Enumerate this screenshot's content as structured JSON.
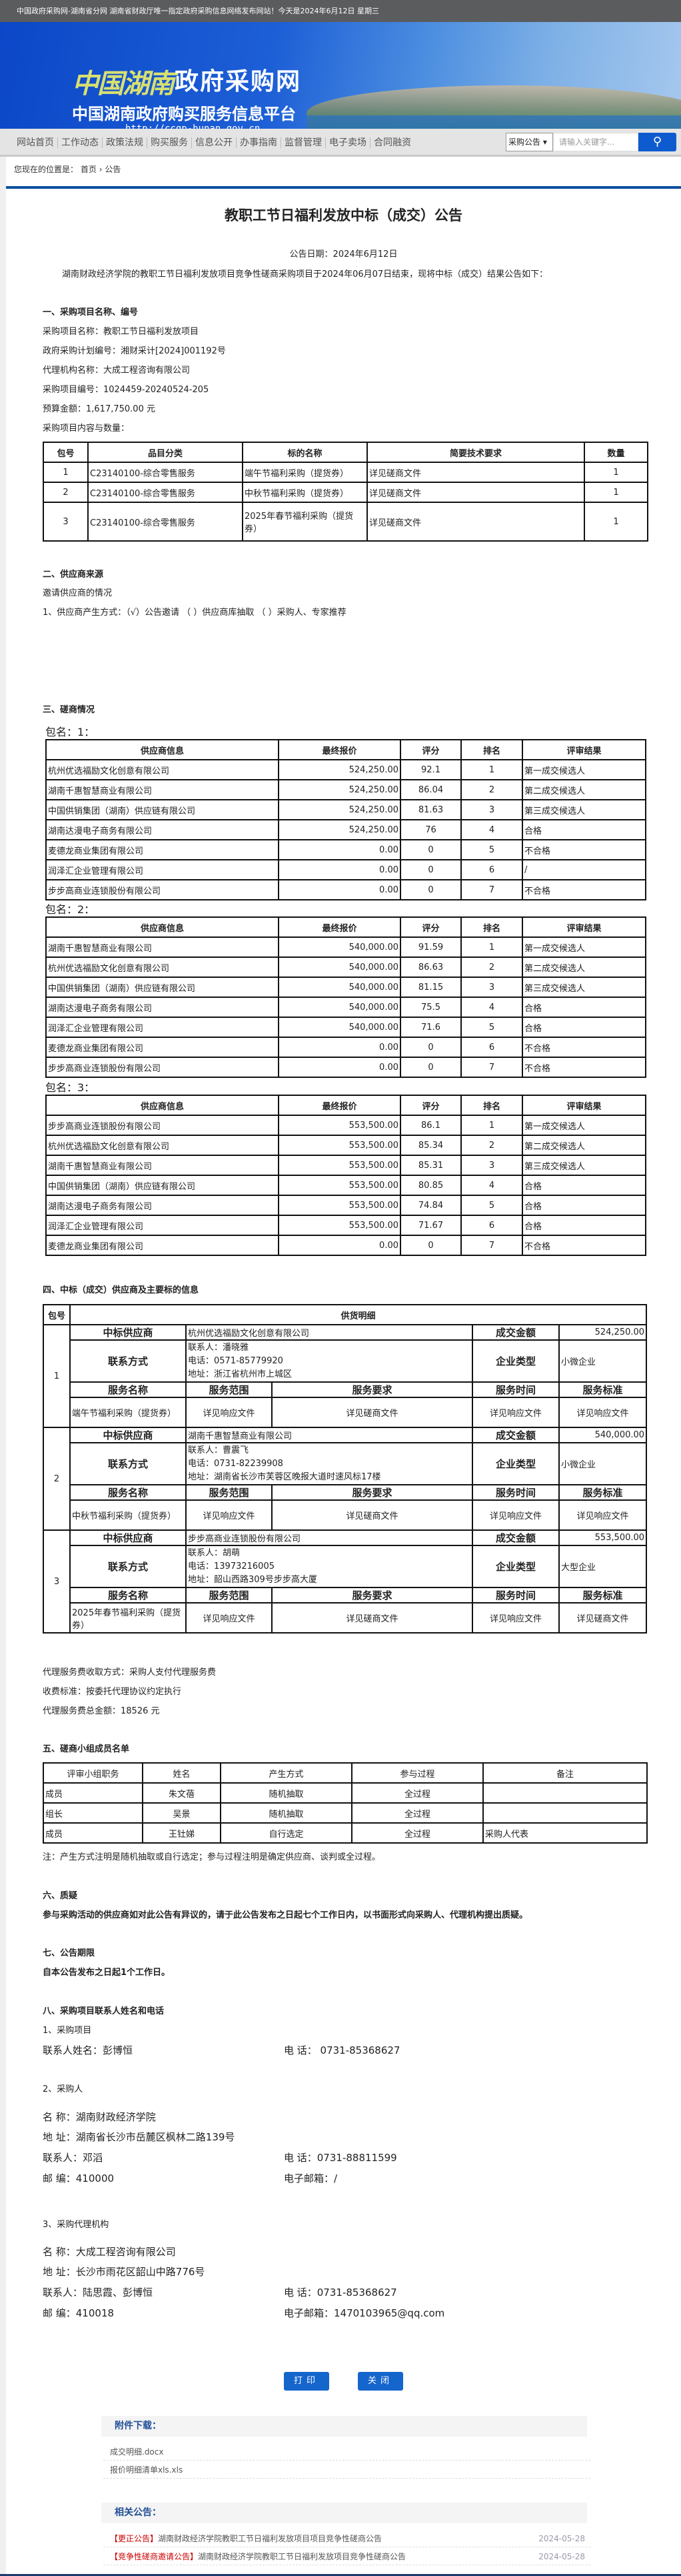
{
  "topbar": {
    "text": "中国政府采购网-湖南省分网 湖南省财政厅唯一指定政府采购信息网络发布网站！今天是2024年6月12日 星期三"
  },
  "banner": {
    "logo_calligraphy": "中国湖南",
    "logo_main": "政府采购网",
    "subtitle": "中国湖南政府购买服务信息平台",
    "url": "http://ccgp-hunan.gov.cn"
  },
  "nav": {
    "items": [
      "网站首页",
      "工作动态",
      "政策法规",
      "购买服务",
      "信息公开",
      "办事指南",
      "监督管理",
      "电子卖场",
      "合同融资"
    ],
    "search": {
      "select": "采购公告",
      "placeholder": "请输入关键字...",
      "icon": "search-icon"
    }
  },
  "breadcrumb": {
    "prefix": "您现在的位置是：",
    "home": "首页",
    "sep": "›",
    "current": "公告"
  },
  "notice": {
    "title": "教职工节日福利发放中标（成交）公告",
    "date": "公告日期：2024年6月12日",
    "intro": "湖南财政经济学院的教职工节日福利发放项目竞争性磋商采购项目于2024年06月07日结束，现将中标（成交）结果公告如下：",
    "s1": {
      "heading": "一、采购项目名称、编号",
      "lines": [
        "采购项目名称：教职工节日福利发放项目",
        "政府采购计划编号：湘财采计[2024]001192号",
        "代理机构名称：大成工程咨询有限公司",
        "采购项目编号：1024459-20240524-205",
        "预算金额：1,617,750.00 元",
        "采购项目内容与数量："
      ],
      "table": {
        "headers": [
          "包号",
          "品目分类",
          "标的名称",
          "简要技术要求",
          "数量"
        ],
        "rows": [
          [
            "1",
            "C23140100-综合零售服务",
            "端午节福利采购（提货券）",
            "详见磋商文件",
            "1"
          ],
          [
            "2",
            "C23140100-综合零售服务",
            "中秋节福利采购（提货券）",
            "详见磋商文件",
            "1"
          ],
          [
            "3",
            "C23140100-综合零售服务",
            "2025年春节福利采购（提货券）",
            "详见磋商文件",
            "1"
          ]
        ]
      }
    },
    "s2": {
      "heading": "二、供应商来源",
      "lines": [
        "邀请供应商的情况",
        "1、供应商产生方式：（√）公告邀请 （ ）供应商库抽取 （ ）采购人、专家推荐"
      ]
    },
    "s3": {
      "heading": "三、磋商情况",
      "headers": [
        "供应商信息",
        "最终报价",
        "评分",
        "排名",
        "评审结果"
      ],
      "packages": [
        {
          "label": "包名：1：",
          "rows": [
            [
              "杭州优选福励文化创意有限公司",
              "524,250.00",
              "92.1",
              "1",
              "第一成交候选人"
            ],
            [
              "湖南千惠智慧商业有限公司",
              "524,250.00",
              "86.04",
              "2",
              "第二成交候选人"
            ],
            [
              "中国供销集团（湖南）供应链有限公司",
              "524,250.00",
              "81.63",
              "3",
              "第三成交候选人"
            ],
            [
              "湖南达漫电子商务有限公司",
              "524,250.00",
              "76",
              "4",
              "合格"
            ],
            [
              "麦德龙商业集团有限公司",
              "0.00",
              "0",
              "5",
              "不合格"
            ],
            [
              "润泽汇企业管理有限公司",
              "0.00",
              "0",
              "6",
              "/"
            ],
            [
              "步步高商业连锁股份有限公司",
              "0.00",
              "0",
              "7",
              "不合格"
            ]
          ]
        },
        {
          "label": "包名：2：",
          "rows": [
            [
              "湖南千惠智慧商业有限公司",
              "540,000.00",
              "91.59",
              "1",
              "第一成交候选人"
            ],
            [
              "杭州优选福励文化创意有限公司",
              "540,000.00",
              "86.63",
              "2",
              "第二成交候选人"
            ],
            [
              "中国供销集团（湖南）供应链有限公司",
              "540,000.00",
              "81.15",
              "3",
              "第三成交候选人"
            ],
            [
              "湖南达漫电子商务有限公司",
              "540,000.00",
              "75.5",
              "4",
              "合格"
            ],
            [
              "润泽汇企业管理有限公司",
              "540,000.00",
              "71.6",
              "5",
              "合格"
            ],
            [
              "麦德龙商业集团有限公司",
              "0.00",
              "0",
              "6",
              "不合格"
            ],
            [
              "步步高商业连锁股份有限公司",
              "0.00",
              "0",
              "7",
              "不合格"
            ]
          ]
        },
        {
          "label": "包名：3：",
          "rows": [
            [
              "步步高商业连锁股份有限公司",
              "553,500.00",
              "86.1",
              "1",
              "第一成交候选人"
            ],
            [
              "杭州优选福励文化创意有限公司",
              "553,500.00",
              "85.34",
              "2",
              "第二成交候选人"
            ],
            [
              "湖南千惠智慧商业有限公司",
              "553,500.00",
              "85.31",
              "3",
              "第三成交候选人"
            ],
            [
              "中国供销集团（湖南）供应链有限公司",
              "553,500.00",
              "80.85",
              "4",
              "合格"
            ],
            [
              "湖南达漫电子商务有限公司",
              "553,500.00",
              "74.84",
              "5",
              "合格"
            ],
            [
              "润泽汇企业管理有限公司",
              "553,500.00",
              "71.67",
              "6",
              "合格"
            ],
            [
              "麦德龙商业集团有限公司",
              "0.00",
              "0",
              "7",
              "不合格"
            ]
          ]
        }
      ]
    },
    "s4": {
      "heading": "四、中标（成交）供应商及主要标的信息",
      "col_pkg": "包号",
      "col_detail": "供货明细",
      "labels": {
        "supplier": "中标供应商",
        "amount": "成交金额",
        "contact": "联系方式",
        "type": "企业类型",
        "svc_name": "服务名称",
        "svc_scope": "服务范围",
        "svc_req": "服务要求",
        "svc_time": "服务时间",
        "svc_std": "服务标准"
      },
      "packages": [
        {
          "no": "1",
          "supplier": "杭州优选福励文化创意有限公司",
          "amount": "524,250.00",
          "contact": [
            "联系人：潘晓雅",
            "电话：0571-85779920",
            "地址：浙江省杭州市上城区"
          ],
          "type": "小微企业",
          "service": [
            "端午节福利采购（提货券）",
            "详见响应文件",
            "详见磋商文件",
            "详见响应文件",
            "详见响应文件"
          ]
        },
        {
          "no": "2",
          "supplier": "湖南千惠智慧商业有限公司",
          "amount": "540,000.00",
          "contact": [
            "联系人：曹震飞",
            "电话：0731-82239908",
            "地址：湖南省长沙市芙蓉区晚报大道时速风标17楼"
          ],
          "type": "小微企业",
          "service": [
            "中秋节福利采购（提货券）",
            "详见响应文件",
            "详见磋商文件",
            "详见响应文件",
            "详见响应文件"
          ]
        },
        {
          "no": "3",
          "supplier": "步步高商业连锁股份有限公司",
          "amount": "553,500.00",
          "contact": [
            "联系人：胡萌",
            "电话：13973216005",
            "地址：韶山西路309号步步高大厦"
          ],
          "type": "大型企业",
          "service": [
            "2025年春节福利采购（提货券）",
            "详见响应文件",
            "详见磋商文件",
            "详见响应文件",
            "详见磋商文件"
          ]
        }
      ],
      "fee_lines": [
        "代理服务费收取方式：采购人支付代理服务费",
        "收费标准：按委托代理协议约定执行",
        "代理服务费总金额：18526 元"
      ]
    },
    "s5": {
      "heading": "五、磋商小组成员名单",
      "headers": [
        "评审小组职务",
        "姓名",
        "产生方式",
        "参与过程",
        "备注"
      ],
      "rows": [
        [
          "成员",
          "朱文蓓",
          "随机抽取",
          "全过程",
          ""
        ],
        [
          "组长",
          "吴景",
          "随机抽取",
          "全过程",
          ""
        ],
        [
          "成员",
          "王钍娣",
          "自行选定",
          "全过程",
          "采购人代表"
        ]
      ],
      "note": "注：产生方式注明是随机抽取或自行选定；参与过程注明是确定供应商、谈判或全过程。"
    },
    "s6": {
      "heading": "六、质疑",
      "text": "参与采购活动的供应商如对此公告有异议的，请于此公告发布之日起七个工作日内，以书面形式向采购人、代理机构提出质疑。"
    },
    "s7": {
      "heading": "七、公告期限",
      "text": "自本公告发布之日起1个工作日。"
    },
    "s8": {
      "heading": "八、采购项目联系人姓名和电话",
      "p1": {
        "title": "1、采购项目",
        "name": "联系人姓名：彭博恒",
        "phone": "电 话： 0731-85368627"
      },
      "p2": {
        "title": "2、采购人",
        "name": "名 称：湖南财政经济学院",
        "addr": "地 址：湖南省长沙市岳麓区枫林二路139号",
        "contact": "联系人：邓滔",
        "phone": "电 话：0731-88811599",
        "zip": "邮 编：410000",
        "email": "电子邮箱：/"
      },
      "p3": {
        "title": "3、采购代理机构",
        "name": "名 称：大成工程咨询有限公司",
        "addr": "地 址：长沙市雨花区韶山中路776号",
        "contact": "联系人：陆思霞、彭博恒",
        "phone": "电 话：0731-85368627",
        "zip": "邮 编：410018",
        "email": "电子邮箱：1470103965@qq.com"
      }
    }
  },
  "actions": {
    "print": "打印",
    "close": "关闭"
  },
  "attachments": {
    "title": "附件下载：",
    "files": [
      "成交明细.docx",
      "报价明细清单xls.xls"
    ]
  },
  "related": {
    "title": "相关公告：",
    "items": [
      {
        "tag": "【更正公告】",
        "text": "湖南财政经济学院教职工节日福利发放项目项目竞争性磋商公告",
        "date": "2024-05-28"
      },
      {
        "tag": "【竞争性磋商邀请公告】",
        "text": "湖南财政经济学院教职工节日福利发放项目竞争性磋商公告",
        "date": "2024-05-28"
      }
    ]
  },
  "colors": {
    "accent": "#0b4fa0",
    "button": "#1566cc",
    "tag": "#cc0000"
  }
}
